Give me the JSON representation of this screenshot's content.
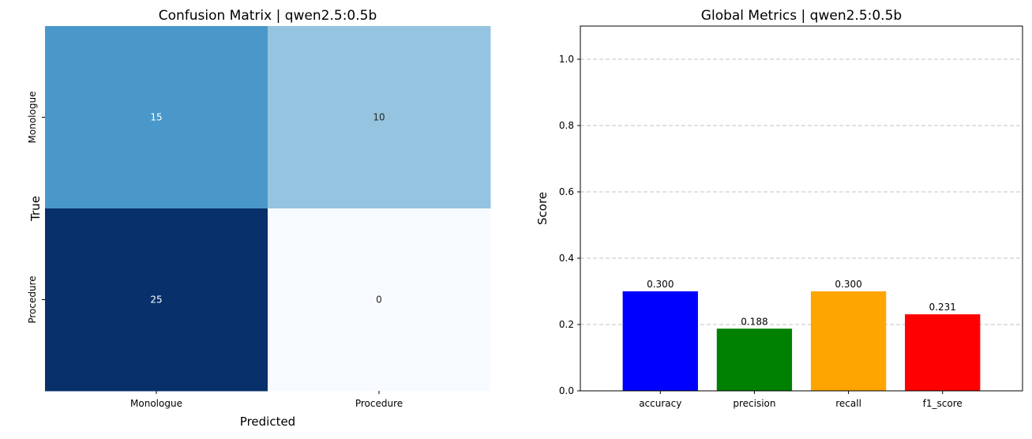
{
  "chart_data": [
    {
      "type": "heatmap",
      "title": "Confusion Matrix | qwen2.5:0.5b",
      "xlabel": "Predicted",
      "ylabel": "True",
      "x_categories": [
        "Monologue",
        "Procedure"
      ],
      "y_categories": [
        "Monologue",
        "Procedure"
      ],
      "values": [
        [
          15,
          10
        ],
        [
          25,
          0
        ]
      ],
      "colormap": "Blues",
      "colors": [
        [
          "#4a98c9",
          "#94c4df"
        ],
        [
          "#08306b",
          "#f7fbff"
        ]
      ],
      "text_colors": [
        [
          "#ffffff",
          "#262626"
        ],
        [
          "#ffffff",
          "#262626"
        ]
      ]
    },
    {
      "type": "bar",
      "title": "Global Metrics | qwen2.5:0.5b",
      "xlabel": "",
      "ylabel": "Score",
      "categories": [
        "accuracy",
        "precision",
        "recall",
        "f1_score"
      ],
      "values": [
        0.3,
        0.1875,
        0.3,
        0.2308
      ],
      "labels": [
        "0.300",
        "0.188",
        "0.300",
        "0.231"
      ],
      "colors": [
        "#0000ff",
        "#008000",
        "#ffa500",
        "#ff0000"
      ],
      "ylim": [
        0,
        1.1
      ],
      "yticks": [
        0.0,
        0.2,
        0.4,
        0.6,
        0.8,
        1.0
      ],
      "ytick_labels": [
        "0.0",
        "0.2",
        "0.4",
        "0.6",
        "0.8",
        "1.0"
      ],
      "grid": "y-dashed"
    }
  ]
}
